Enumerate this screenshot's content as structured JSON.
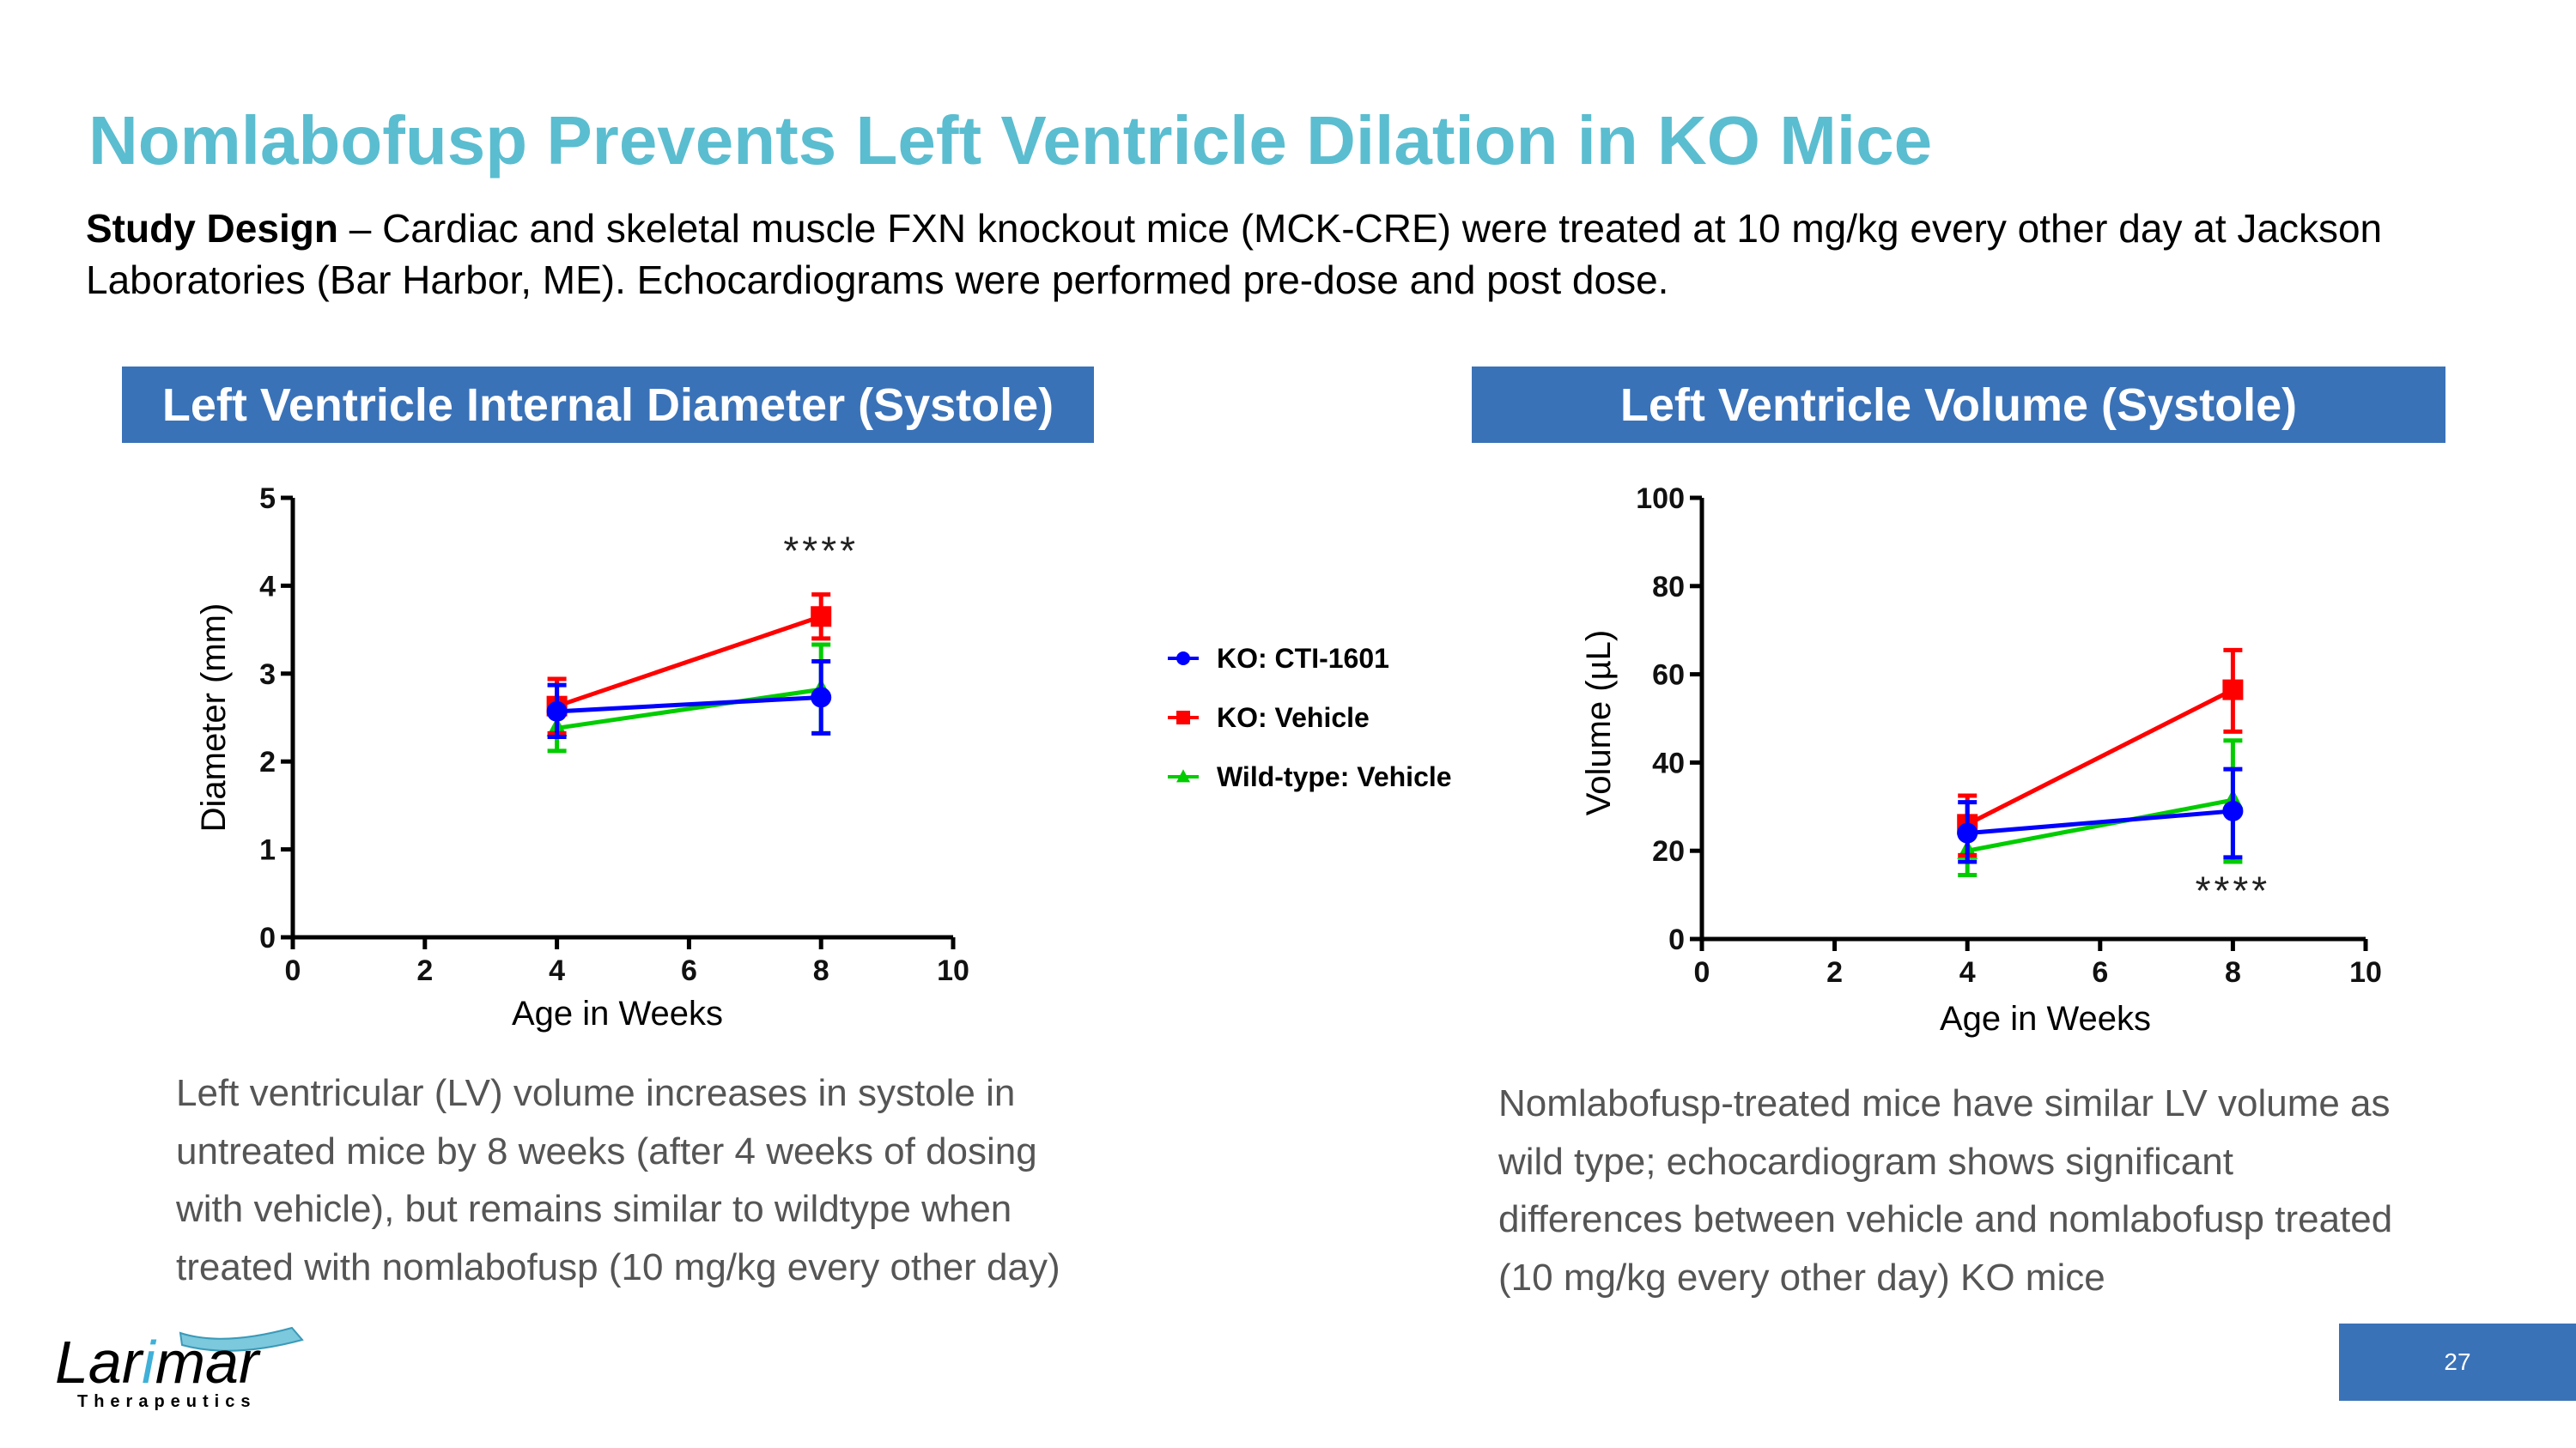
{
  "slide": {
    "title": "Nomlabofusp Prevents Left Ventricle Dilation in KO Mice",
    "study_design_label": "Study Design",
    "study_design_text": " – Cardiac and skeletal muscle FXN knockout mice (MCK-CRE) were treated at 10 mg/kg every other day at Jackson Laboratories (Bar Harbor, ME). Echocardiograms were performed pre-dose and post dose.",
    "page_number": "27",
    "logo": {
      "wordmark": "Larimar",
      "tagline": "Therapeutics"
    },
    "notes": {
      "left": [
        "Left ventricular (LV) volume increases in systole in",
        "untreated mice by 8 weeks (after 4 weeks of dosing",
        "with vehicle), but remains similar to wildtype when",
        "treated with nomlabofusp (10 mg/kg every other day)"
      ],
      "right": [
        "Nomlabofusp-treated mice have similar LV volume as",
        "wild type; echocardiogram shows significant",
        "differences between vehicle and nomlabofusp treated",
        "(10 mg/kg every other day) KO mice"
      ]
    },
    "colors": {
      "title": "#5bbdd0",
      "header_bg": "#3a72b8",
      "ko_cti": "#0000ff",
      "ko_vehicle": "#ff0000",
      "wild_type": "#00cc00"
    }
  },
  "legend": [
    {
      "name": "KO: CTI-1601",
      "color": "#0000ff",
      "marker": "circle"
    },
    {
      "name": "KO: Vehicle",
      "color": "#ff0000",
      "marker": "square"
    },
    {
      "name": "Wild-type: Vehicle",
      "color": "#00cc00",
      "marker": "triangle"
    }
  ],
  "chart_data": [
    {
      "type": "line",
      "title": "Left Ventricle Internal Diameter (Systole)",
      "xlabel": "Age in Weeks",
      "ylabel": "Diameter (mm)",
      "xlim": [
        0,
        10
      ],
      "ylim": [
        0,
        5
      ],
      "xticks": [
        0,
        2,
        4,
        6,
        8,
        10
      ],
      "yticks": [
        0,
        1,
        2,
        3,
        4,
        5
      ],
      "grid": false,
      "annotation": {
        "text": "****",
        "x": 8,
        "y": 4.4
      },
      "x": [
        4,
        8
      ],
      "series": [
        {
          "name": "Wild-type: Vehicle",
          "color": "#00cc00",
          "marker": "triangle",
          "values": [
            2.38,
            2.82
          ],
          "err_low": [
            2.12,
            2.32
          ],
          "err_high": [
            2.65,
            3.33
          ]
        },
        {
          "name": "KO: Vehicle",
          "color": "#ff0000",
          "marker": "square",
          "values": [
            2.63,
            3.65
          ],
          "err_low": [
            2.32,
            3.4
          ],
          "err_high": [
            2.94,
            3.9
          ]
        },
        {
          "name": "KO: CTI-1601",
          "color": "#0000ff",
          "marker": "circle",
          "values": [
            2.57,
            2.73
          ],
          "err_low": [
            2.28,
            2.32
          ],
          "err_high": [
            2.87,
            3.14
          ]
        }
      ]
    },
    {
      "type": "line",
      "title": "Left Ventricle Volume (Systole)",
      "xlabel": "Age in Weeks",
      "ylabel": "Volume  (µL)",
      "xlim": [
        0,
        10
      ],
      "ylim": [
        0,
        100
      ],
      "xticks": [
        0,
        2,
        4,
        6,
        8,
        10
      ],
      "yticks": [
        0,
        20,
        40,
        60,
        80,
        100
      ],
      "grid": false,
      "annotation": {
        "text": "****",
        "x": 8,
        "y": 11
      },
      "x": [
        4,
        8
      ],
      "series": [
        {
          "name": "Wild-type: Vehicle",
          "color": "#00cc00",
          "marker": "triangle",
          "values": [
            20,
            31.5
          ],
          "err_low": [
            14.5,
            17.5
          ],
          "err_high": [
            26,
            45
          ]
        },
        {
          "name": "KO: Vehicle",
          "color": "#ff0000",
          "marker": "square",
          "values": [
            26,
            56.5
          ],
          "err_low": [
            19,
            47
          ],
          "err_high": [
            32.5,
            65.5
          ]
        },
        {
          "name": "KO: CTI-1601",
          "color": "#0000ff",
          "marker": "circle",
          "values": [
            24,
            29
          ],
          "err_low": [
            17.5,
            18.5
          ],
          "err_high": [
            31,
            38.5
          ]
        }
      ]
    }
  ]
}
